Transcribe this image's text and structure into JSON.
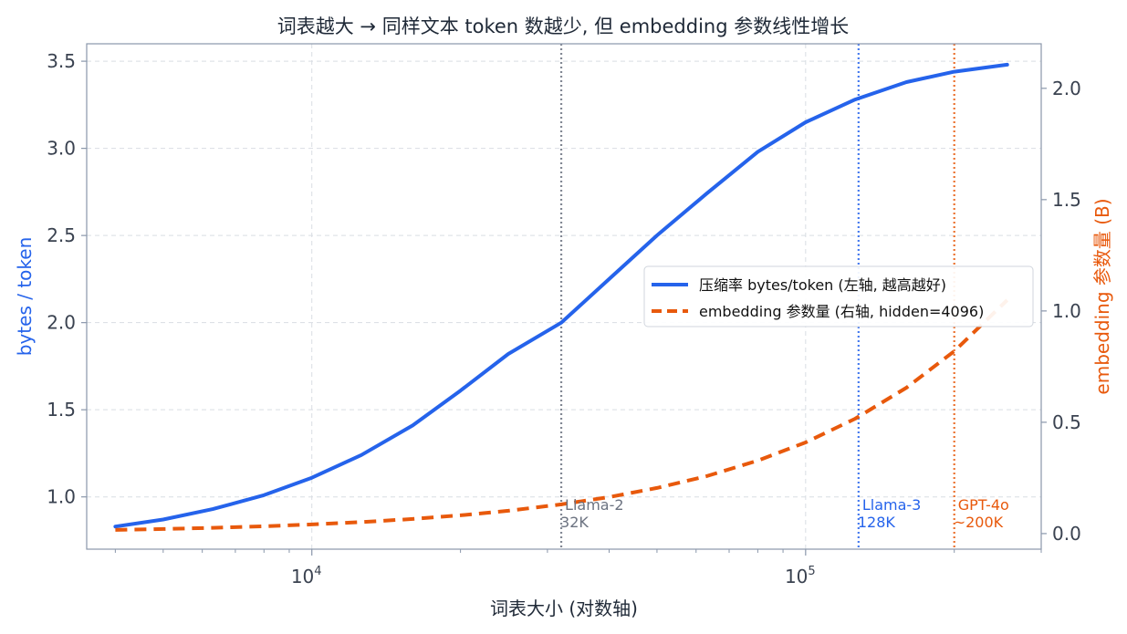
{
  "chart_data": {
    "type": "line",
    "title": "词表越大 → 同样文本 token 数越少, 但 embedding 参数线性增长",
    "xlabel": "词表大小 (对数轴)",
    "ylabel_left": "bytes / token",
    "ylabel_right": "embedding 参数量 (B)",
    "xscale": "log",
    "xlim": [
      3500,
      300000
    ],
    "ylim_left": [
      0.7,
      3.6
    ],
    "ylim_right": [
      -0.07,
      2.2
    ],
    "x_ticks": [
      {
        "base": "10",
        "exp": "4",
        "value": 10000
      },
      {
        "base": "10",
        "exp": "5",
        "value": 100000
      }
    ],
    "y_ticks_left": [
      "1.0",
      "1.5",
      "2.0",
      "2.5",
      "3.0",
      "3.5"
    ],
    "y_ticks_right": [
      "0.0",
      "0.5",
      "1.0",
      "1.5",
      "2.0"
    ],
    "grid": true,
    "legend_position": "center-right",
    "colors": {
      "compression": "#2563eb",
      "embedding": "#e8590c",
      "llama2": "#6b7280",
      "llama3": "#2563eb",
      "gpt4o": "#e8590c"
    },
    "series": [
      {
        "name": "压缩率 bytes/token (左轴, 越高越好)",
        "axis": "left",
        "style": "solid",
        "x": [
          4000,
          5000,
          6300,
          8000,
          10000,
          12600,
          16000,
          20000,
          25000,
          32000,
          40000,
          50000,
          63000,
          80000,
          100000,
          126000,
          160000,
          200000,
          256000
        ],
        "values": [
          0.83,
          0.87,
          0.93,
          1.01,
          1.11,
          1.24,
          1.41,
          1.61,
          1.82,
          2.0,
          2.25,
          2.5,
          2.74,
          2.98,
          3.15,
          3.28,
          3.38,
          3.44,
          3.48
        ]
      },
      {
        "name": "embedding 参数量 (右轴, hidden=4096)",
        "axis": "right",
        "style": "dashed",
        "x": [
          4000,
          5000,
          6300,
          8000,
          10000,
          12600,
          16000,
          20000,
          25000,
          32000,
          40000,
          50000,
          63000,
          80000,
          100000,
          126000,
          160000,
          200000,
          256000
        ],
        "values": [
          0.0164,
          0.0205,
          0.0258,
          0.0328,
          0.041,
          0.0516,
          0.0655,
          0.0819,
          0.1024,
          0.131,
          0.1638,
          0.2048,
          0.258,
          0.3277,
          0.4096,
          0.5161,
          0.6554,
          0.8192,
          1.0486
        ]
      }
    ],
    "annotations": [
      {
        "x": 32000,
        "label": "Llama-2",
        "sub": "32K",
        "color_key": "llama2"
      },
      {
        "x": 128000,
        "label": "Llama-3",
        "sub": "128K",
        "color_key": "llama3"
      },
      {
        "x": 200000,
        "label": "GPT-4o",
        "sub": "~200K",
        "color_key": "gpt4o"
      }
    ]
  }
}
